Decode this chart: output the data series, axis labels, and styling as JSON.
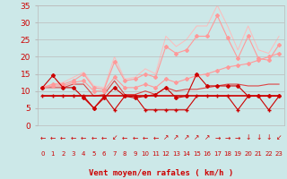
{
  "x": [
    0,
    1,
    2,
    3,
    4,
    5,
    6,
    7,
    8,
    9,
    10,
    11,
    12,
    13,
    14,
    15,
    16,
    17,
    18,
    19,
    20,
    21,
    22,
    23
  ],
  "series": [
    {
      "y": [
        11,
        14.5,
        11,
        11,
        8,
        5,
        8,
        11,
        8.5,
        8,
        8.5,
        9,
        11,
        8,
        8.5,
        15,
        11.5,
        11.5,
        11.5,
        11.5,
        8.5,
        8.5,
        8.5,
        8.5
      ],
      "color": "#cc0000",
      "lw": 0.8,
      "marker": "D",
      "ms": 2.0,
      "zorder": 5
    },
    {
      "y": [
        8.5,
        8.5,
        8.5,
        8.5,
        8.5,
        5,
        8.5,
        4.5,
        8.5,
        8.5,
        4.5,
        4.5,
        4.5,
        4.5,
        4.5,
        8.5,
        8.5,
        8.5,
        8.5,
        4.5,
        8.5,
        8.5,
        4.5,
        8.5
      ],
      "color": "#cc0000",
      "lw": 0.8,
      "marker": "+",
      "ms": 3.0,
      "zorder": 4
    },
    {
      "y": [
        8.5,
        8.5,
        8.5,
        8.5,
        8.5,
        8.5,
        8.5,
        8.5,
        8.5,
        8.5,
        8.5,
        8.5,
        8.5,
        8.5,
        8.5,
        8.5,
        8.5,
        8.5,
        8.5,
        8.5,
        8.5,
        8.5,
        8.5,
        8.5
      ],
      "color": "#cc0000",
      "lw": 1.2,
      "marker": null,
      "ms": 0,
      "zorder": 3
    },
    {
      "y": [
        11,
        11,
        11,
        12,
        12,
        8.5,
        9,
        13,
        9,
        9,
        10,
        9,
        11,
        10,
        10.5,
        10.5,
        11,
        11.5,
        12,
        12,
        11.5,
        11.5,
        12,
        12
      ],
      "color": "#dd4444",
      "lw": 0.8,
      "marker": null,
      "ms": 0,
      "zorder": 2
    },
    {
      "y": [
        11,
        11.5,
        11.5,
        12.5,
        13,
        10,
        10,
        14,
        11,
        11,
        12,
        11,
        13.5,
        12.5,
        13.5,
        14.5,
        15,
        16,
        17,
        17.5,
        18,
        19,
        20,
        21
      ],
      "color": "#ff9999",
      "lw": 0.8,
      "marker": "D",
      "ms": 2.0,
      "zorder": 4
    },
    {
      "y": [
        11,
        12,
        12,
        13,
        15,
        11,
        10.5,
        18.5,
        13,
        13.5,
        15,
        14,
        23,
        21,
        22,
        26,
        26,
        32,
        25.5,
        19.5,
        26,
        19.5,
        19,
        23.5
      ],
      "color": "#ff9999",
      "lw": 0.8,
      "marker": "D",
      "ms": 2.0,
      "zorder": 4
    },
    {
      "y": [
        11,
        12,
        12.5,
        14,
        15.5,
        11.5,
        11,
        20,
        13.5,
        14,
        16.5,
        15,
        26,
        23,
        25,
        29,
        29,
        35,
        29,
        22,
        29,
        22,
        21,
        26
      ],
      "color": "#ffbbbb",
      "lw": 0.7,
      "marker": null,
      "ms": 0,
      "zorder": 1
    }
  ],
  "wind_arrow_chars": [
    "←",
    "←",
    "←",
    "←",
    "←",
    "←",
    "←",
    "↙",
    "←",
    "←",
    "←",
    "←",
    "↗",
    "↗",
    "↗",
    "↗",
    "↗",
    "→",
    "→",
    "→",
    "↓",
    "↓",
    "↓",
    "↙"
  ],
  "ylim": [
    0,
    35
  ],
  "yticks": [
    0,
    5,
    10,
    15,
    20,
    25,
    30,
    35
  ],
  "xlim": [
    -0.5,
    23.5
  ],
  "xlabel": "Vent moyen/en rafales ( km/h )",
  "bg_color": "#cce8e8",
  "grid_color": "#bbbbbb",
  "text_color": "#cc0000",
  "ytick_labels": [
    "0",
    "5",
    "10",
    "15",
    "20",
    "25",
    "30",
    "35"
  ]
}
